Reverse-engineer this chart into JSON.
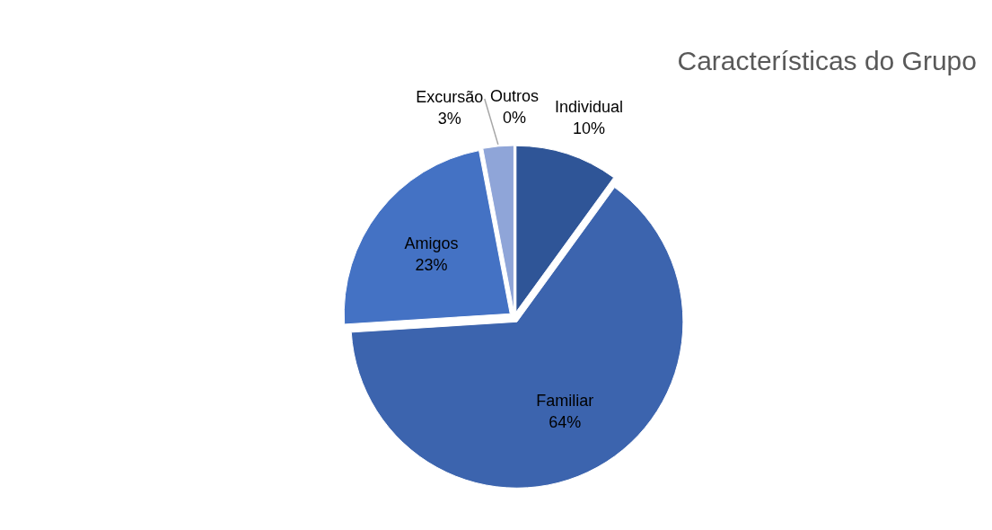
{
  "chart_data": {
    "type": "pie",
    "title": "Características do Grupo",
    "categories": [
      "Individual",
      "Familiar",
      "Amigos",
      "Excursão",
      "Outros"
    ],
    "values": [
      10,
      64,
      23,
      3,
      0
    ],
    "value_labels": [
      "10%",
      "64%",
      "23%",
      "3%",
      "0%"
    ],
    "colors": [
      "#2f5597",
      "#3c64ae",
      "#4472c4",
      "#8fa5d8",
      "#b4c7e7"
    ]
  }
}
